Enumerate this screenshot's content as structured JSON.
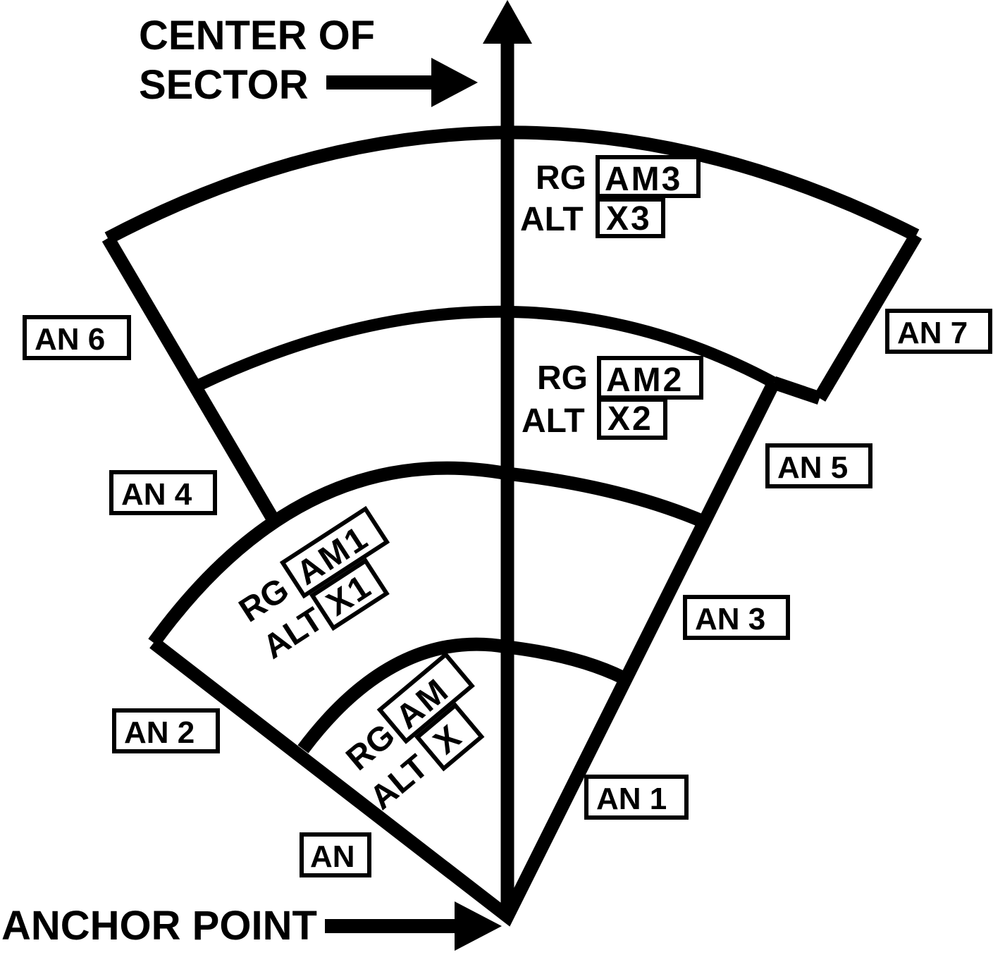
{
  "labels": {
    "center_of_sector_line1": "CENTER OF",
    "center_of_sector_line2": "SECTOR",
    "anchor_point": "ANCHOR POINT"
  },
  "zones": [
    {
      "rg_label": "RG",
      "rg_value": "AM",
      "alt_label": "ALT",
      "alt_value": "X"
    },
    {
      "rg_label": "RG",
      "rg_value": "AM1",
      "alt_label": "ALT",
      "alt_value": "X1"
    },
    {
      "rg_label": "RG",
      "rg_value": "AM2",
      "alt_label": "ALT",
      "alt_value": "X2"
    },
    {
      "rg_label": "RG",
      "rg_value": "AM3",
      "alt_label": "ALT",
      "alt_value": "X3"
    }
  ],
  "an_labels": [
    "AN",
    "AN 1",
    "AN 2",
    "AN 3",
    "AN 4",
    "AN 5",
    "AN 6",
    "AN 7"
  ]
}
